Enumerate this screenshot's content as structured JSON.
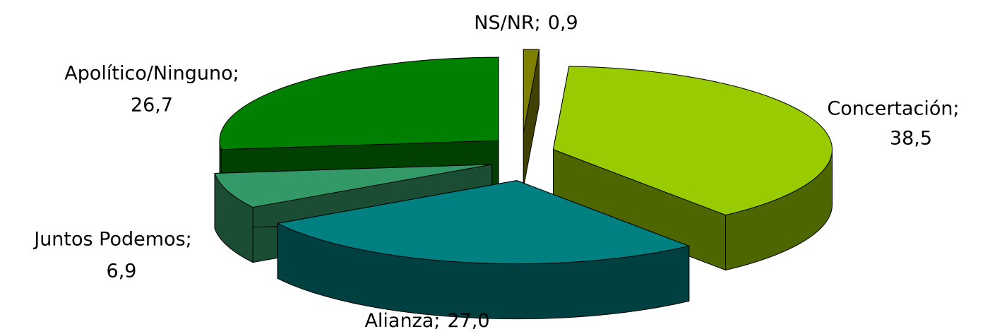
{
  "chart_data": {
    "type": "pie3d",
    "categories": [
      "NS/NR;",
      "Concertación;",
      "Alianza;",
      "Juntos Podemos;",
      "Apolítico/Ninguno;"
    ],
    "values": [
      0.9,
      38.5,
      27.0,
      6.9,
      26.7
    ],
    "value_labels": [
      "0,9",
      "38,5",
      "27,0",
      "6,9",
      "26,7"
    ],
    "colors": [
      "#808000",
      "#99cc00",
      "#008080",
      "#339966",
      "#008000"
    ]
  }
}
